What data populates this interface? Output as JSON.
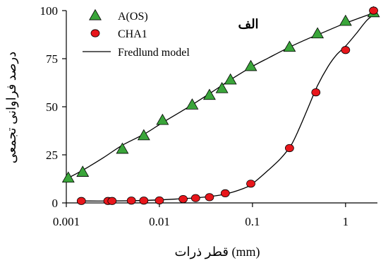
{
  "chart_data": {
    "type": "scatter",
    "title": "",
    "panel_label": "الف",
    "xlabel": "قطر ذرات (mm)",
    "ylabel": "درصد فراوانی تجمعی",
    "x_scale": "log",
    "xlim": [
      0.001,
      2.2
    ],
    "ylim": [
      0,
      100
    ],
    "x_ticks": [
      0.001,
      0.01,
      0.1,
      1
    ],
    "x_tick_labels": [
      "0.001",
      "0.01",
      "0.1",
      "1"
    ],
    "y_ticks": [
      0,
      25,
      50,
      75,
      100
    ],
    "y_tick_labels": [
      "0",
      "25",
      "50",
      "75",
      "100"
    ],
    "grid": false,
    "legend_position": "top-left",
    "series": [
      {
        "name": "A(OS)",
        "marker": "triangle",
        "color": "#3aa53a",
        "x": [
          0.00105,
          0.0015,
          0.004,
          0.0068,
          0.0108,
          0.0225,
          0.0345,
          0.047,
          0.058,
          0.096,
          0.25,
          0.5,
          1.0,
          2.0
        ],
        "y": [
          13,
          16,
          28,
          35,
          43,
          51,
          56,
          59.5,
          64,
          71,
          81,
          88,
          94.5,
          99
        ]
      },
      {
        "name": "CHA1",
        "marker": "circle",
        "color": "#e8161b",
        "x": [
          0.00145,
          0.0028,
          0.0031,
          0.005,
          0.0068,
          0.01,
          0.018,
          0.0245,
          0.0345,
          0.051,
          0.096,
          0.25,
          0.48,
          1.0,
          2.0
        ],
        "y": [
          1,
          1,
          1,
          1.2,
          1.2,
          1.3,
          2,
          2.5,
          3,
          5,
          10,
          28.5,
          57.5,
          79.5,
          100
        ]
      }
    ],
    "fit_curves": [
      {
        "name": "Fredlund model",
        "color": "#000000",
        "x": [
          0.001,
          0.0015,
          0.0025,
          0.004,
          0.007,
          0.011,
          0.02,
          0.035,
          0.06,
          0.1,
          0.15,
          0.25,
          0.4,
          0.6,
          1.0,
          2.2
        ],
        "y": [
          12.5,
          17,
          23.5,
          30,
          36,
          42,
          49.5,
          57,
          64.5,
          71,
          75.5,
          81,
          85.5,
          89,
          93.5,
          99.5
        ]
      },
      {
        "name": "",
        "color": "#000000",
        "x": [
          0.0013,
          0.003,
          0.007,
          0.015,
          0.03,
          0.05,
          0.08,
          0.1,
          0.14,
          0.2,
          0.26,
          0.32,
          0.4,
          0.5,
          0.65,
          0.8,
          1.0,
          1.3,
          1.7,
          2.2
        ],
        "y": [
          1,
          1,
          1.3,
          2,
          3,
          4.5,
          7.5,
          10,
          16,
          23,
          30,
          39,
          50,
          61,
          71,
          77,
          81.5,
          88,
          95,
          99.5
        ]
      }
    ]
  }
}
